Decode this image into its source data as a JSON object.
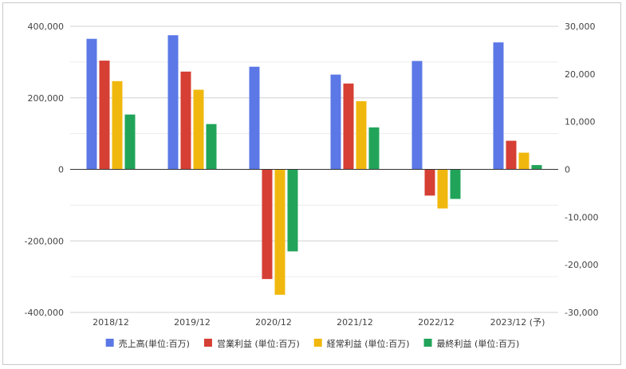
{
  "chart_data": {
    "type": "bar",
    "categories": [
      "2018/12",
      "2019/12",
      "2020/12",
      "2021/12",
      "2022/12",
      "2023/12 (予)"
    ],
    "series": [
      {
        "name": "売上高(単位:百万)",
        "axis": "left",
        "color": "#5b78e6",
        "values": [
          365000,
          375000,
          287000,
          265000,
          303000,
          355000
        ]
      },
      {
        "name": "営業利益 (単位:百万)",
        "axis": "right",
        "color": "#d63f34",
        "values": [
          22800,
          20500,
          -23000,
          18000,
          -5500,
          6000
        ]
      },
      {
        "name": "経常利益 (単位:百万)",
        "axis": "right",
        "color": "#f0b80e",
        "values": [
          18500,
          16700,
          -26300,
          14300,
          -8200,
          3500
        ]
      },
      {
        "name": "最終利益 (単位:百万)",
        "axis": "right",
        "color": "#21a45a",
        "values": [
          11500,
          9500,
          -17200,
          8800,
          -6200,
          900
        ]
      }
    ],
    "left_axis": {
      "ylim": [
        -400000,
        400000
      ],
      "ticks": [
        "400,000",
        "200,000",
        "0",
        "-200,000",
        "-400,000"
      ]
    },
    "right_axis": {
      "ylim": [
        -30000,
        30000
      ],
      "ticks": [
        "30,000",
        "20,000",
        "10,000",
        "0",
        "-10,000",
        "-20,000",
        "-30,000"
      ]
    },
    "grid": true,
    "legend": "bottom"
  }
}
